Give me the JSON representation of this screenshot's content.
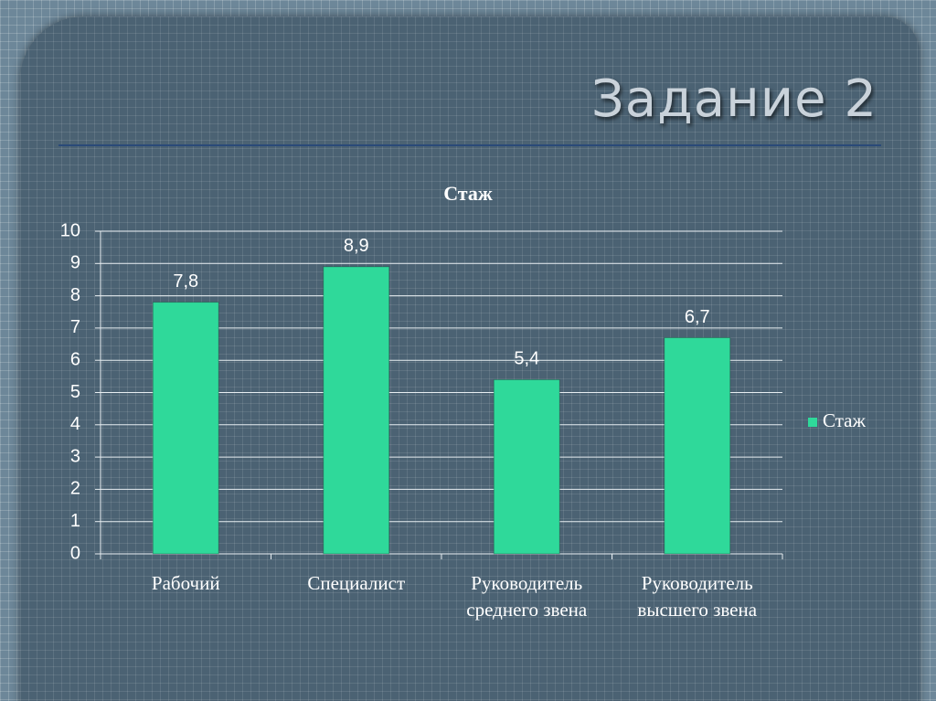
{
  "slide": {
    "title": "Задание 2"
  },
  "chart_data": {
    "type": "bar",
    "title": "Стаж",
    "categories": [
      "Рабочий",
      "Специалист",
      "Руководитель среднего звена",
      "Руководитель высшего звена"
    ],
    "series": [
      {
        "name": "Стаж",
        "color": "#2fd99a",
        "values": [
          7.8,
          8.9,
          5.4,
          6.7
        ],
        "value_labels": [
          "7,8",
          "8,9",
          "5,4",
          "6,7"
        ]
      }
    ],
    "ylim": [
      0,
      10
    ],
    "yticks": [
      0,
      1,
      2,
      3,
      4,
      5,
      6,
      7,
      8,
      9,
      10
    ],
    "grid": true,
    "legend": "right"
  }
}
